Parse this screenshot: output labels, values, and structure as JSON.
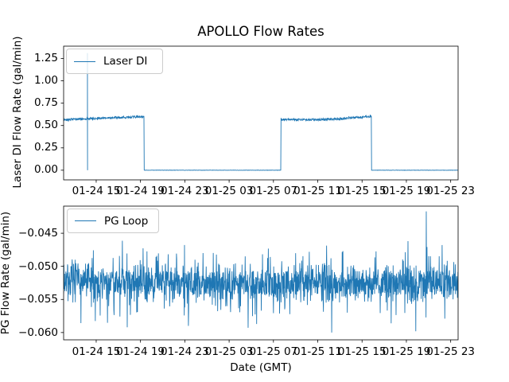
{
  "figure": {
    "title": "APOLLO Flow Rates",
    "background_color": "#ffffff",
    "line_color": "#1f77b4",
    "spine_color": "#000000"
  },
  "top_plot": {
    "ylabel": "Laser DI Flow Rate (gal/min)",
    "legend_label": "Laser DI"
  },
  "bottom_plot": {
    "ylabel": "PG Flow Rate (gal/min)",
    "xlabel": "Date (GMT)",
    "legend_label": "PG Loop"
  },
  "chart_data": [
    {
      "type": "line",
      "title": "APOLLO Flow Rates",
      "series_name": "Laser DI",
      "ylabel": "Laser DI Flow Rate (gal/min)",
      "legend_position": "upper left",
      "grid": false,
      "color": "#1f77b4",
      "x_unit": "hours since 01-24 00:00 GMT",
      "xlim": [
        12.06,
        47.67
      ],
      "ylim": [
        -0.108,
        1.388
      ],
      "yticks": [
        0.0,
        0.25,
        0.5,
        0.75,
        1.0,
        1.25
      ],
      "ytick_labels": [
        "0.00",
        "0.25",
        "0.50",
        "0.75",
        "1.00",
        "1.25"
      ],
      "xtick_hours": [
        15,
        19,
        23,
        27,
        31,
        35,
        39,
        43,
        47
      ],
      "xtick_labels": [
        "01-24 15",
        "01-24 19",
        "01-24 23",
        "01-25 03",
        "01-25 07",
        "01-25 11",
        "01-25 15",
        "01-25 19",
        "01-25 23"
      ],
      "segments": [
        {
          "from": 12.06,
          "to": 19.31,
          "level": 0.585,
          "noise": 0.012,
          "drift": [
            -0.02,
            0.015
          ],
          "state": "flow on ~0.58 gal/min"
        },
        {
          "from": 19.31,
          "to": 31.66,
          "level": 0.0,
          "noise": 0.0015,
          "state": "flow off"
        },
        {
          "from": 31.66,
          "to": 39.84,
          "level": 0.578,
          "noise": 0.012,
          "drift": [
            -0.008,
            0.025
          ],
          "dip": 0.018,
          "state": "flow on ~0.57-0.60 gal/min"
        },
        {
          "from": 39.84,
          "to": 47.67,
          "level": 0.0,
          "noise": 0.0015,
          "state": "flow off"
        }
      ],
      "spike": {
        "hour": 14.21,
        "min": 0.0,
        "max": 1.31
      }
    },
    {
      "type": "line",
      "series_name": "PG Loop",
      "ylabel": "PG Flow Rate (gal/min)",
      "xlabel": "Date (GMT)",
      "legend_position": "upper left",
      "grid": false,
      "color": "#1f77b4",
      "x_unit": "hours since 01-24 00:00 GMT",
      "xlim": [
        12.06,
        47.67
      ],
      "ylim": [
        -0.0611,
        -0.0409
      ],
      "yticks": [
        -0.045,
        -0.05,
        -0.055,
        -0.06
      ],
      "ytick_labels": [
        "−0.045",
        "−0.050",
        "−0.055",
        "−0.060"
      ],
      "xtick_hours": [
        15,
        19,
        23,
        27,
        31,
        35,
        39,
        43,
        47
      ],
      "xtick_labels": [
        "01-24 15",
        "01-24 19",
        "01-24 23",
        "01-25 03",
        "01-25 07",
        "01-25 11",
        "01-25 15",
        "01-25 19",
        "01-25 23"
      ],
      "base_level": -0.0525,
      "dense_band": [
        -0.0545,
        -0.0505
      ],
      "typical_excursions": [
        -0.059,
        -0.046
      ],
      "notable_spikes": [
        {
          "hour": 17.8,
          "value": -0.0592
        },
        {
          "hour": 23.33,
          "value": -0.059
        },
        {
          "hour": 36.25,
          "value": -0.06
        },
        {
          "hour": 43.86,
          "value": -0.0598
        },
        {
          "hour": 44.8,
          "value": -0.0417
        }
      ]
    }
  ]
}
